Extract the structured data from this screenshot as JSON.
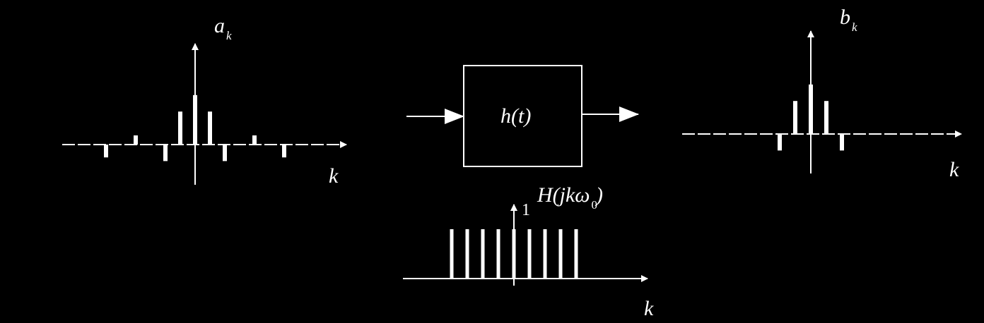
{
  "input_spectrum": {
    "label_main": "a",
    "label_sub": "k",
    "axis_label": "k",
    "stems": [
      {
        "k": -6,
        "value": -0.35
      },
      {
        "k": -4,
        "value": 0.25
      },
      {
        "k": -2,
        "value": -0.45
      },
      {
        "k": -1,
        "value": 0.9
      },
      {
        "k": 0,
        "value": 1.35
      },
      {
        "k": 1,
        "value": 0.9
      },
      {
        "k": 2,
        "value": -0.45
      },
      {
        "k": 4,
        "value": 0.25
      },
      {
        "k": 6,
        "value": -0.35
      }
    ]
  },
  "system": {
    "block_label": "h(t)"
  },
  "filter_spectrum": {
    "label": "H(jkω₀)",
    "label_main": "H(jkω",
    "label_sub": "0",
    "label_close": ")",
    "amplitude_label": "1",
    "axis_label": "k",
    "stems": [
      {
        "k": -4,
        "value": 1
      },
      {
        "k": -3,
        "value": 1
      },
      {
        "k": -2,
        "value": 1
      },
      {
        "k": -1,
        "value": 1
      },
      {
        "k": 0,
        "value": 1
      },
      {
        "k": 1,
        "value": 1
      },
      {
        "k": 2,
        "value": 1
      },
      {
        "k": 3,
        "value": 1
      },
      {
        "k": 4,
        "value": 1
      }
    ]
  },
  "output_spectrum": {
    "label_main": "b",
    "label_sub": "k",
    "axis_label": "k",
    "stems": [
      {
        "k": -2,
        "value": -0.45
      },
      {
        "k": -1,
        "value": 0.9
      },
      {
        "k": 0,
        "value": 1.35
      },
      {
        "k": 1,
        "value": 0.9
      },
      {
        "k": 2,
        "value": -0.45
      }
    ]
  },
  "colors": {
    "background": "#000000",
    "foreground": "#ffffff"
  }
}
